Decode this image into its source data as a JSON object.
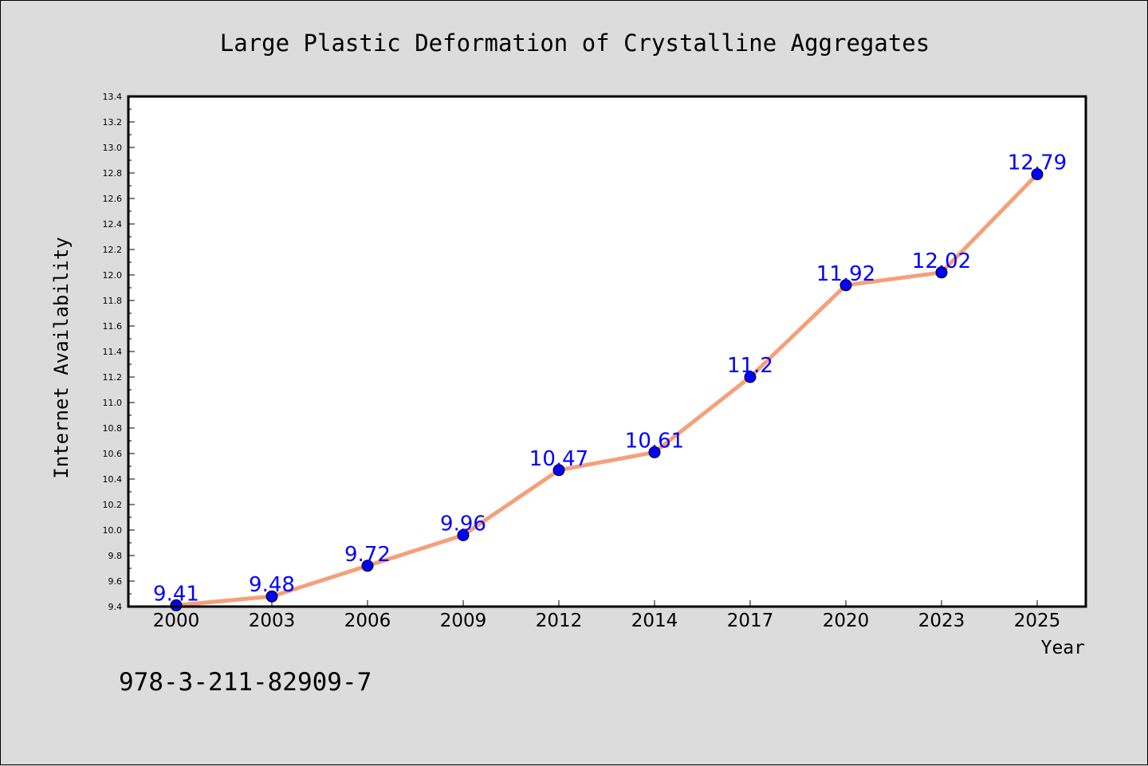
{
  "chart_data": {
    "type": "line",
    "title": "Large Plastic Deformation of Crystalline Aggregates",
    "xlabel": "Year",
    "ylabel": "Internet Availability",
    "categories": [
      "2000",
      "2003",
      "2006",
      "2009",
      "2012",
      "2014",
      "2017",
      "2020",
      "2023",
      "2025"
    ],
    "series": [
      {
        "values": [
          9.41,
          9.48,
          9.72,
          9.96,
          10.47,
          10.61,
          11.2,
          11.92,
          12.02,
          12.79
        ]
      }
    ],
    "data_labels": [
      "9.41",
      "9.48",
      "9.72",
      "9.96",
      "10.47",
      "10.61",
      "11.2",
      "11.92",
      "12.02",
      "12.79"
    ],
    "ylim": [
      9.4,
      13.4
    ],
    "yticks": [
      "9.4",
      "9.6",
      "9.8",
      "10.0",
      "10.2",
      "10.4",
      "10.6",
      "10.8",
      "11.0",
      "11.2",
      "11.4",
      "11.6",
      "11.8",
      "12.0",
      "12.2",
      "12.4",
      "12.6",
      "12.8",
      "13.0",
      "13.2",
      "13.4"
    ],
    "grid": false,
    "legend": "none",
    "colors": {
      "line": "#f4a07a",
      "marker": "#0000ff",
      "data_label": "#0000ff",
      "plot_background": "#ffffff",
      "figure_background": "#dcdcdc"
    }
  },
  "annotation": "978-3-211-82909-7"
}
